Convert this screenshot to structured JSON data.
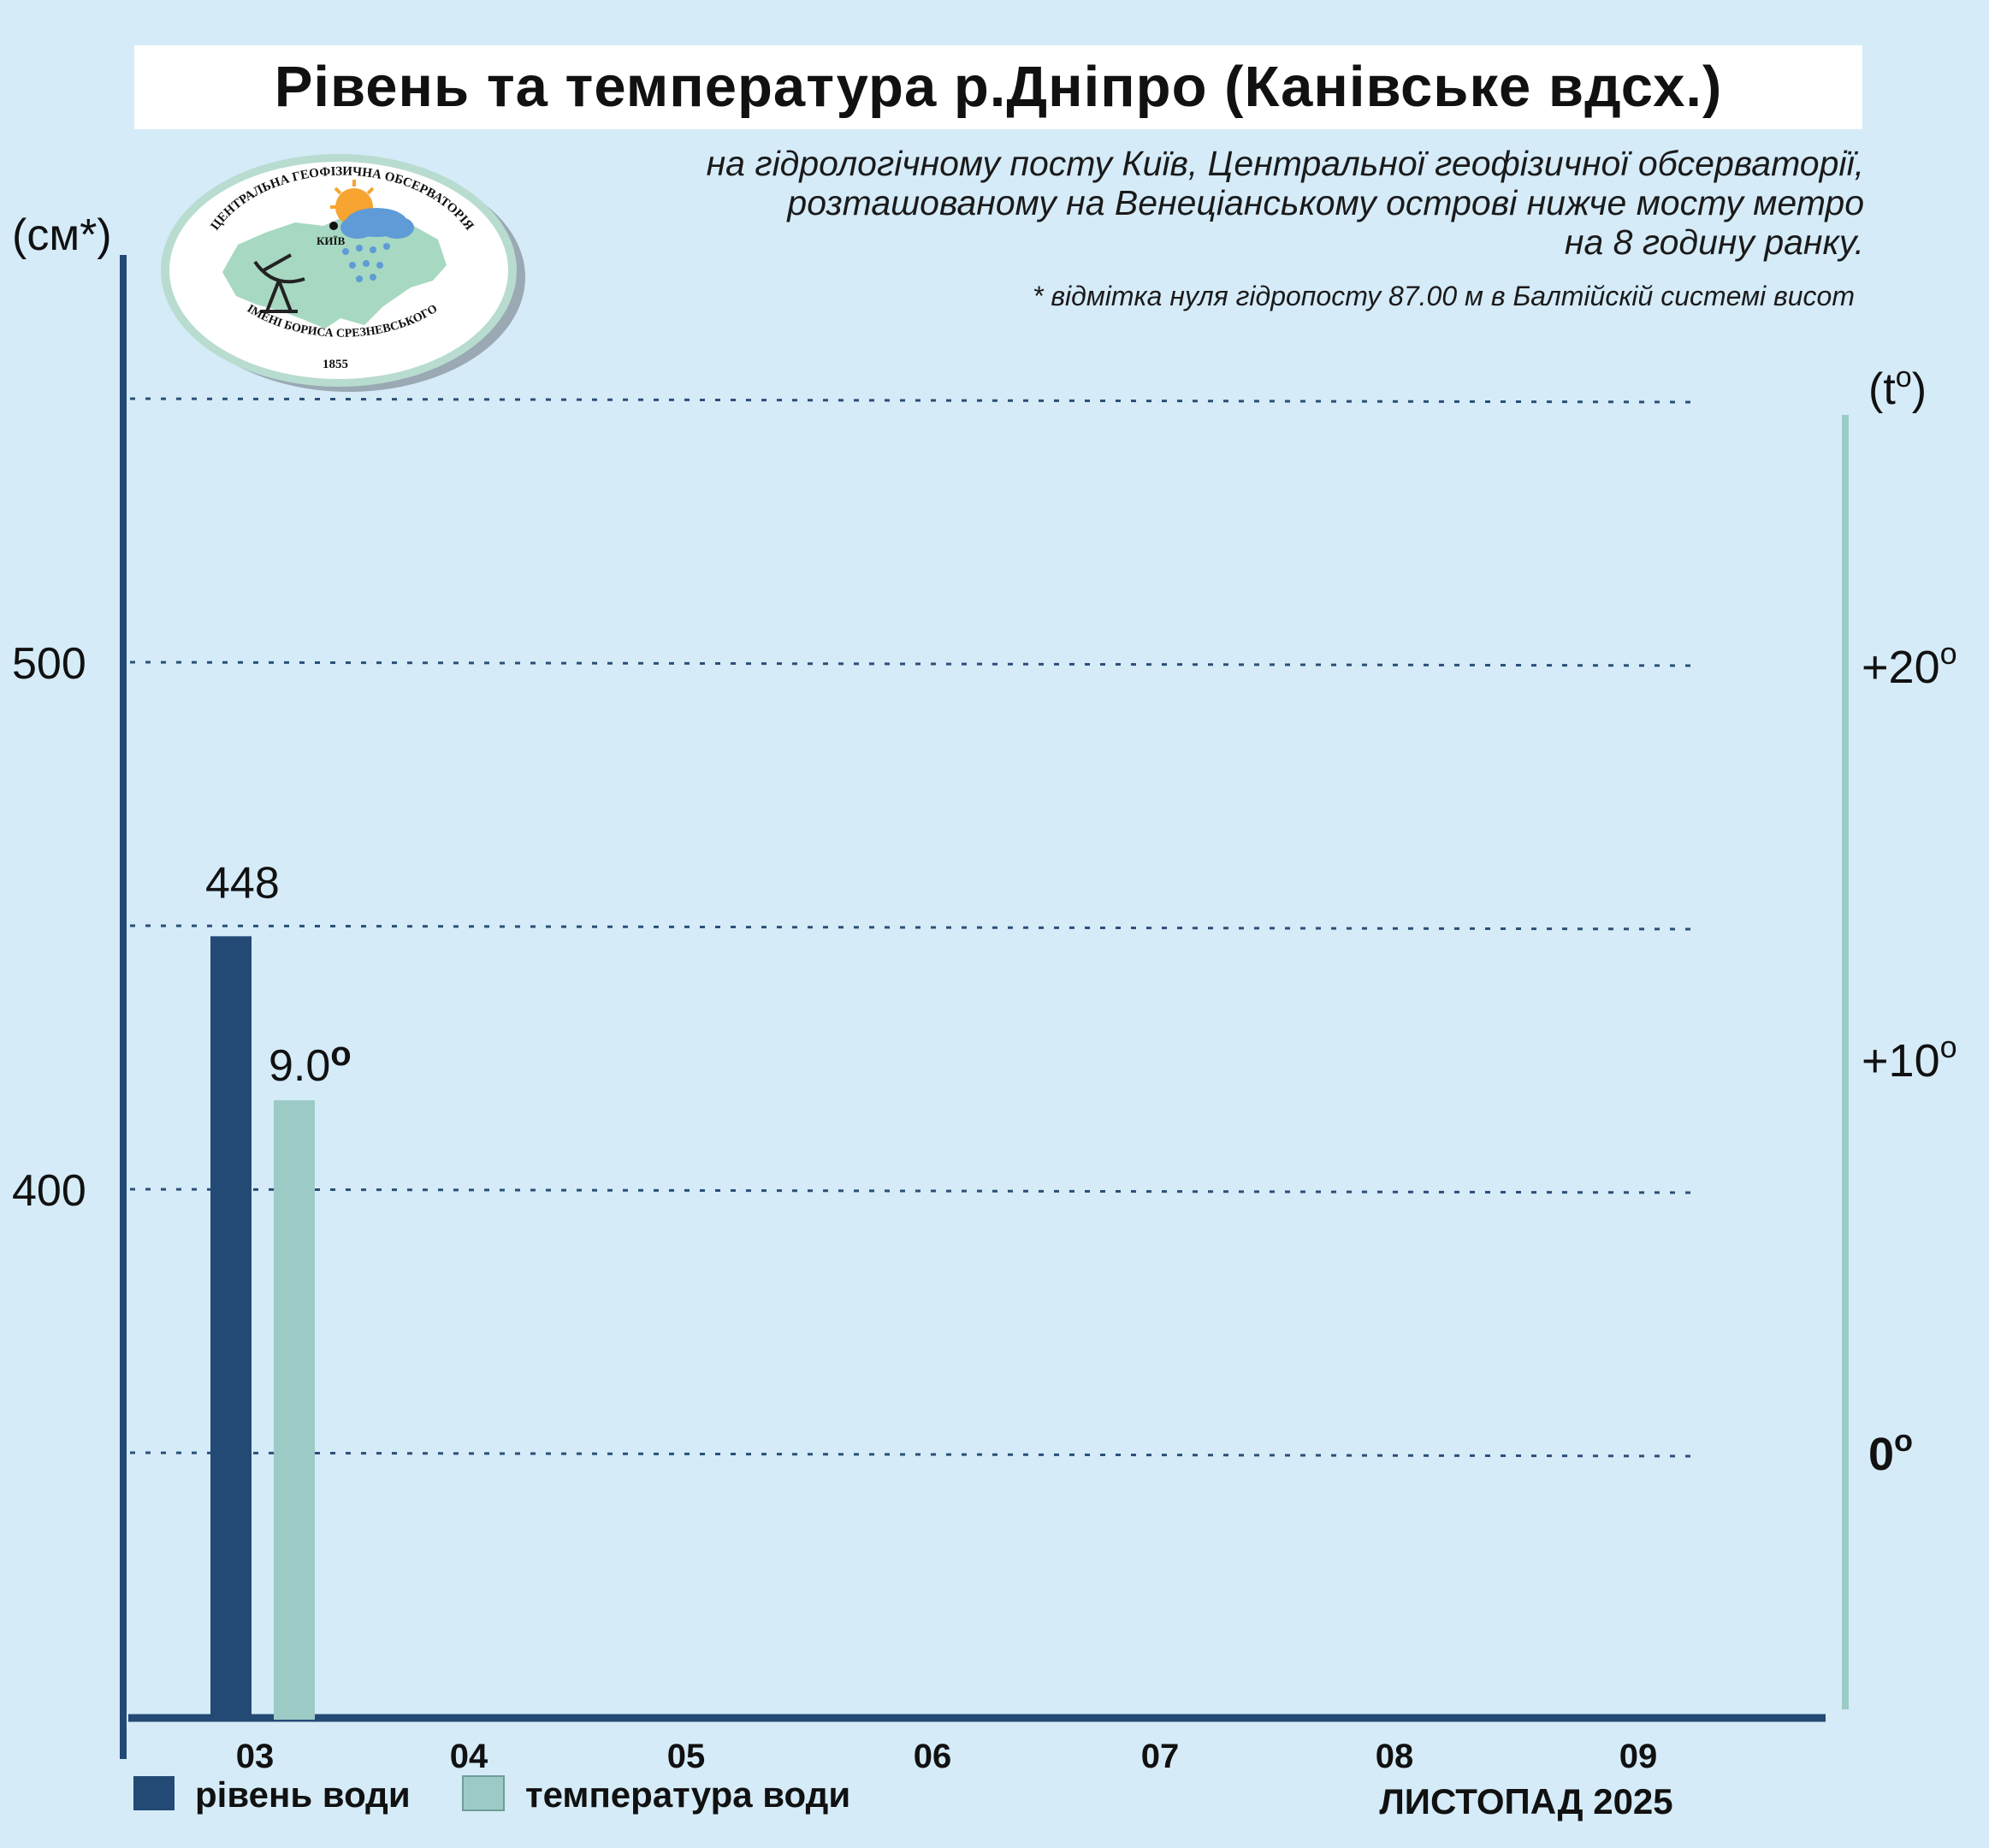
{
  "header": {
    "title": "Рівень та температура р.Дніпро (Канівське вдсх.)",
    "subtitle_lines": [
      "на гідрологічному посту Київ, Центральної геофізичної обсерваторії,",
      "розташованому на Венеціанському острові нижче мосту метро",
      "на 8 годину ранку."
    ],
    "footnote": "* відмітка нуля гідропосту 87.00 м в Балтійскій системі висот"
  },
  "logo": {
    "top_text": "ЦЕНТРАЛЬНА ГЕОФІЗИЧНА ОБСЕРВАТОРІЯ",
    "bottom_text": "ІМЕНІ БОРИСА СРЕЗНЕВСЬКОГО",
    "year": "1855",
    "city": "КИЇВ"
  },
  "colors": {
    "background": "#d5ebf8",
    "level": "#234a74",
    "temperature": "#9ccbc6",
    "axis_left": "#234a74",
    "axis_right": "#9ccbc6",
    "grid": "#2b4f78"
  },
  "chart_data": {
    "type": "bar",
    "categories": [
      "03",
      "04",
      "05",
      "06",
      "07",
      "08",
      "09"
    ],
    "series": [
      {
        "name": "рівень води",
        "axis": "left",
        "values": [
          448,
          null,
          null,
          null,
          null,
          null,
          null
        ],
        "labels": [
          "448",
          "",
          "",
          "",
          "",
          "",
          ""
        ]
      },
      {
        "name": "температура води",
        "axis": "right",
        "values": [
          9.0,
          null,
          null,
          null,
          null,
          null,
          null
        ],
        "labels": [
          "9.0",
          "",
          "",
          "",
          "",
          "",
          ""
        ]
      }
    ],
    "left_axis": {
      "unit": "(см*)",
      "ticks": [
        400,
        500
      ],
      "grid_values": [
        350,
        400,
        450,
        500,
        550
      ],
      "range": [
        300,
        550
      ]
    },
    "right_axis": {
      "unit": "(t",
      "unit_sup": "o",
      "unit_close": ")",
      "ticks": [
        {
          "value": 0,
          "label": "0",
          "sup": "o"
        },
        {
          "value": 10,
          "label": "+10",
          "sup": "o"
        },
        {
          "value": 20,
          "label": "+20",
          "sup": "o"
        }
      ]
    },
    "degree_sign": "o",
    "xlabel": "ЛИСТОПАД 2025",
    "grid": true,
    "legend_position": "bottom-left"
  }
}
